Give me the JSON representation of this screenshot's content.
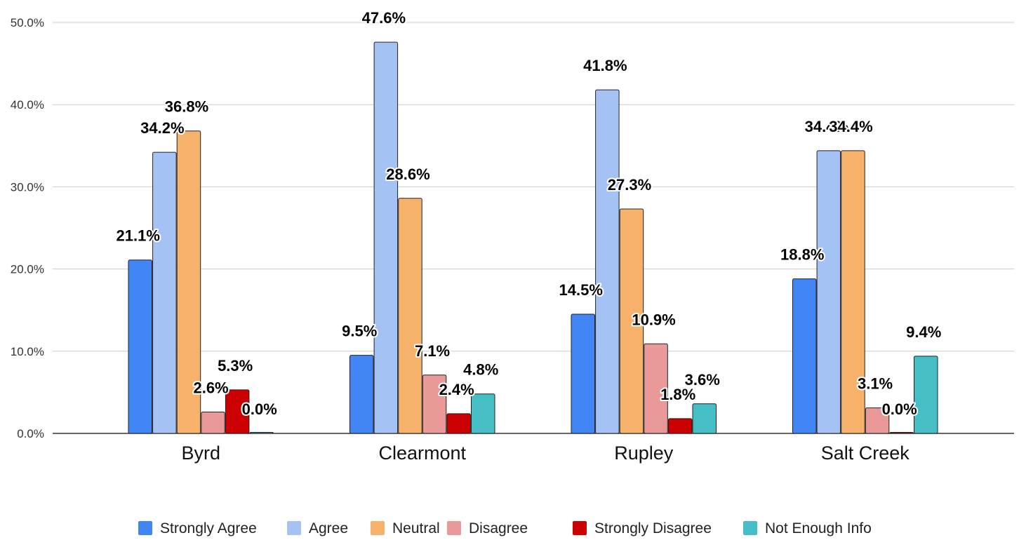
{
  "chart_data": {
    "type": "bar",
    "title": "",
    "xlabel": "",
    "ylabel": "",
    "categories": [
      "Byrd",
      "Clearmont",
      "Rupley",
      "Salt Creek"
    ],
    "series": [
      {
        "name": "Strongly Agree",
        "color": "#4285f4",
        "values": [
          21.1,
          9.5,
          14.5,
          18.8
        ],
        "labels": [
          "21.1%",
          "9.5%",
          "14.5%",
          "18.8%"
        ]
      },
      {
        "name": "Agree",
        "color": "#a4c2f4",
        "values": [
          34.2,
          47.6,
          41.8,
          34.4
        ],
        "labels": [
          "34.2%",
          "47.6%",
          "41.8%",
          "34.4%"
        ]
      },
      {
        "name": "Neutral",
        "color": "#f6b26b",
        "values": [
          36.8,
          28.6,
          27.3,
          34.4
        ],
        "labels": [
          "36.8%",
          "28.6%",
          "27.3%",
          "34.4%"
        ]
      },
      {
        "name": "Disagree",
        "color": "#ea9999",
        "values": [
          2.6,
          7.1,
          10.9,
          3.1
        ],
        "labels": [
          "2.6%",
          "7.1%",
          "10.9%",
          "3.1%"
        ]
      },
      {
        "name": "Strongly Disagree",
        "color": "#cc0000",
        "values": [
          5.3,
          2.4,
          1.8,
          0.0
        ],
        "labels": [
          "5.3%",
          "2.4%",
          "1.8%",
          "0.0%"
        ]
      },
      {
        "name": "Not Enough Info",
        "color": "#45bec6",
        "values": [
          0.0,
          4.8,
          3.6,
          9.4
        ],
        "labels": [
          "0.0%",
          "4.8%",
          "3.6%",
          "9.4%"
        ]
      }
    ],
    "ylim": [
      0,
      50
    ],
    "yticks": [
      0,
      10,
      20,
      30,
      40,
      50
    ],
    "ytick_labels": [
      "0.0%",
      "10.0%",
      "20.0%",
      "30.0%",
      "40.0%",
      "50.0%"
    ],
    "grid": true,
    "legend": "bottom"
  }
}
